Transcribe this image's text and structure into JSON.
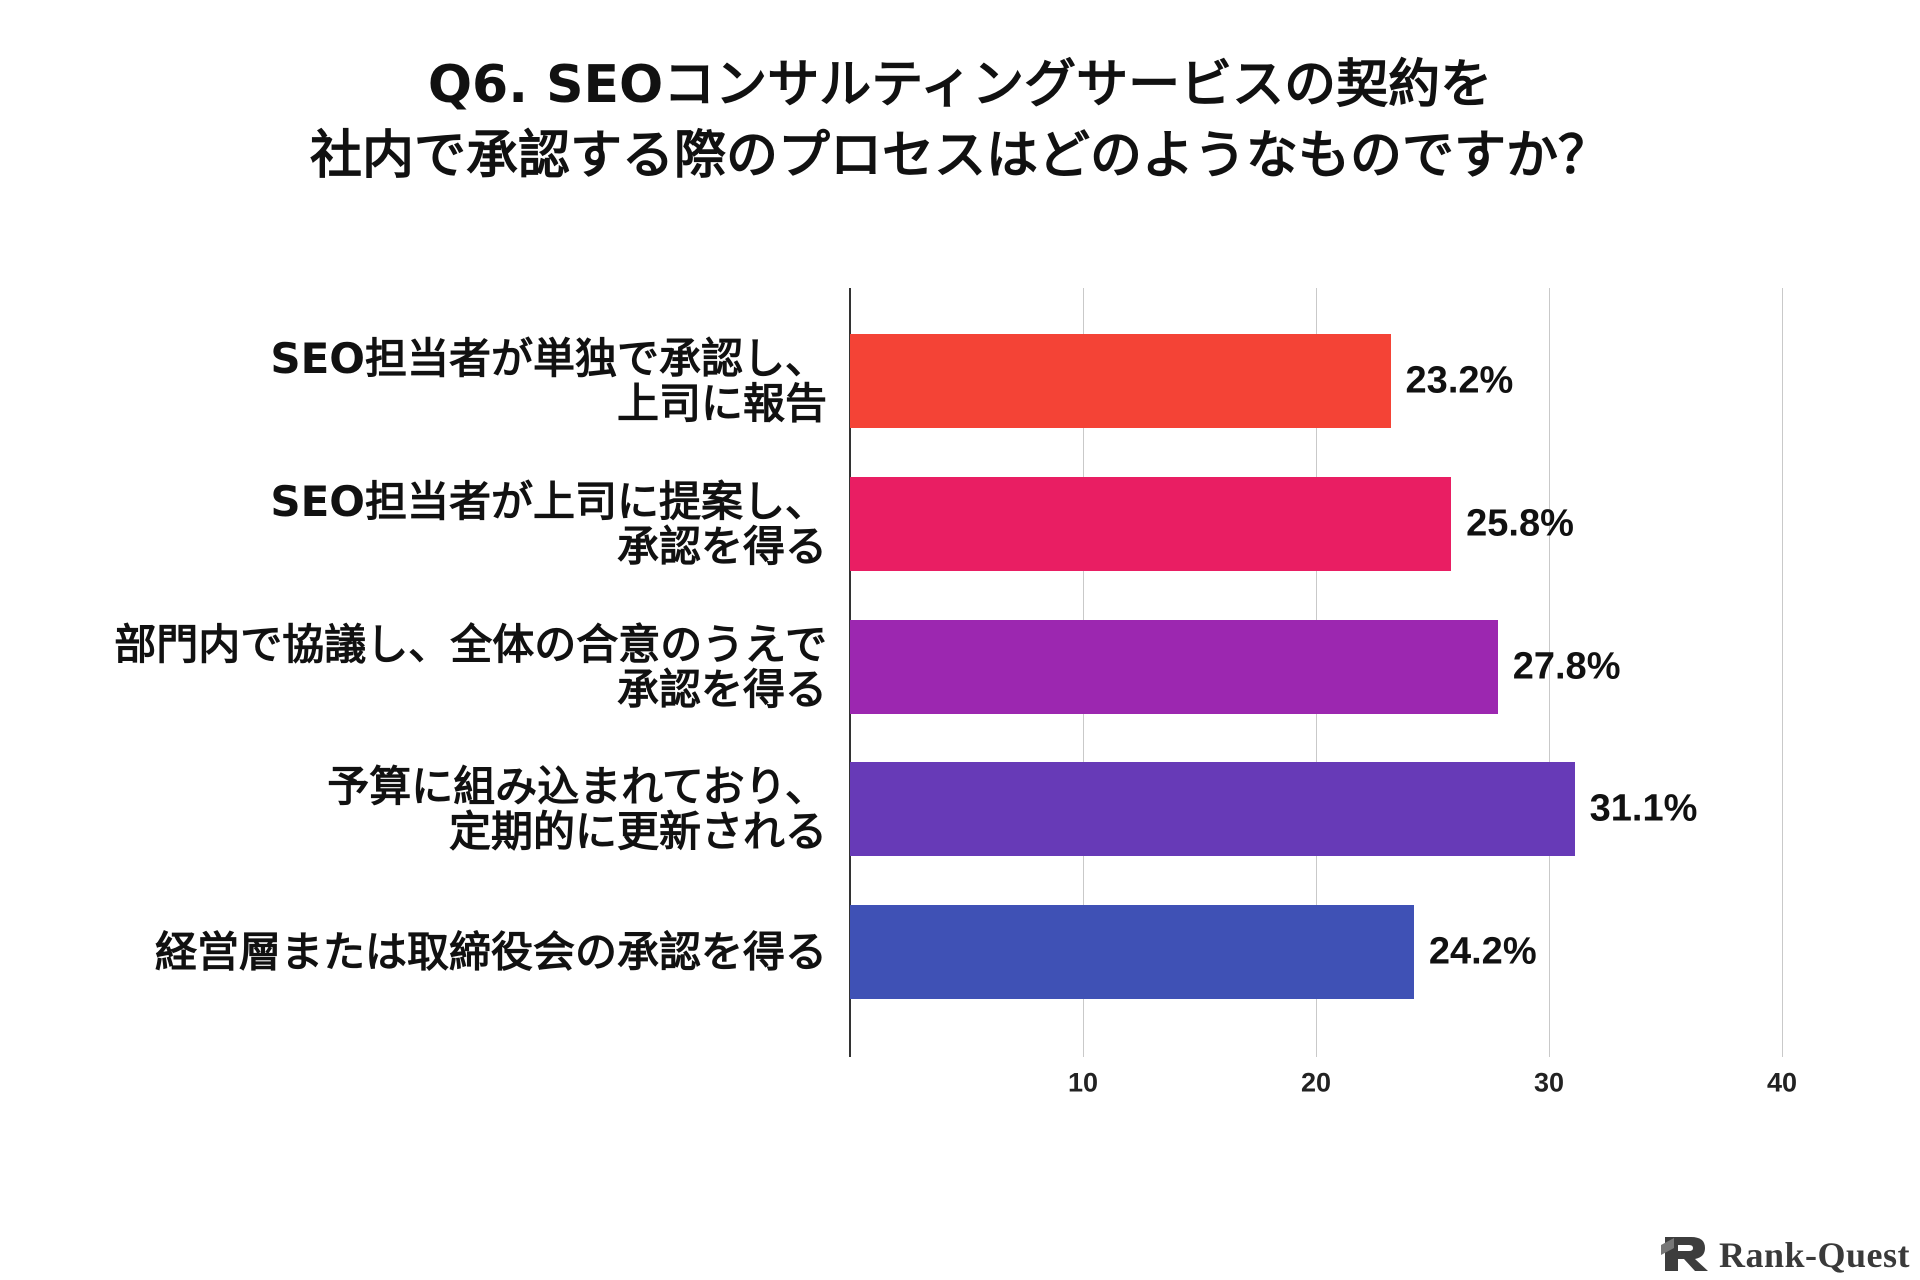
{
  "chart_data": {
    "type": "bar",
    "orientation": "horizontal",
    "title": "Q6. SEOコンサルティングサービスの契約を\n社内で承認する際のプロセスはどのようなものですか？",
    "categories": [
      "SEO担当者が単独で承認し、\n上司に報告",
      "SEO担当者が上司に提案し、\n承認を得る",
      "部門内で協議し、全体の合意のうえで\n承認を得る",
      "予算に組み込まれており、\n定期的に更新される",
      "経営層または取締役会の承認を得る"
    ],
    "values": [
      23.2,
      25.8,
      27.8,
      31.1,
      24.2
    ],
    "value_labels": [
      "23.2%",
      "25.8%",
      "27.8%",
      "31.1%",
      "24.2%"
    ],
    "colors": [
      "#F44336",
      "#E91E63",
      "#9C27B0",
      "#673AB7",
      "#3F51B5"
    ],
    "xlim": [
      0,
      40
    ],
    "xticks": [
      10,
      20,
      30,
      40
    ],
    "grid": true
  },
  "brand": {
    "name": "Rank-Quest",
    "icon": "rank-quest-logo-icon",
    "color": "#3a3a3a"
  }
}
